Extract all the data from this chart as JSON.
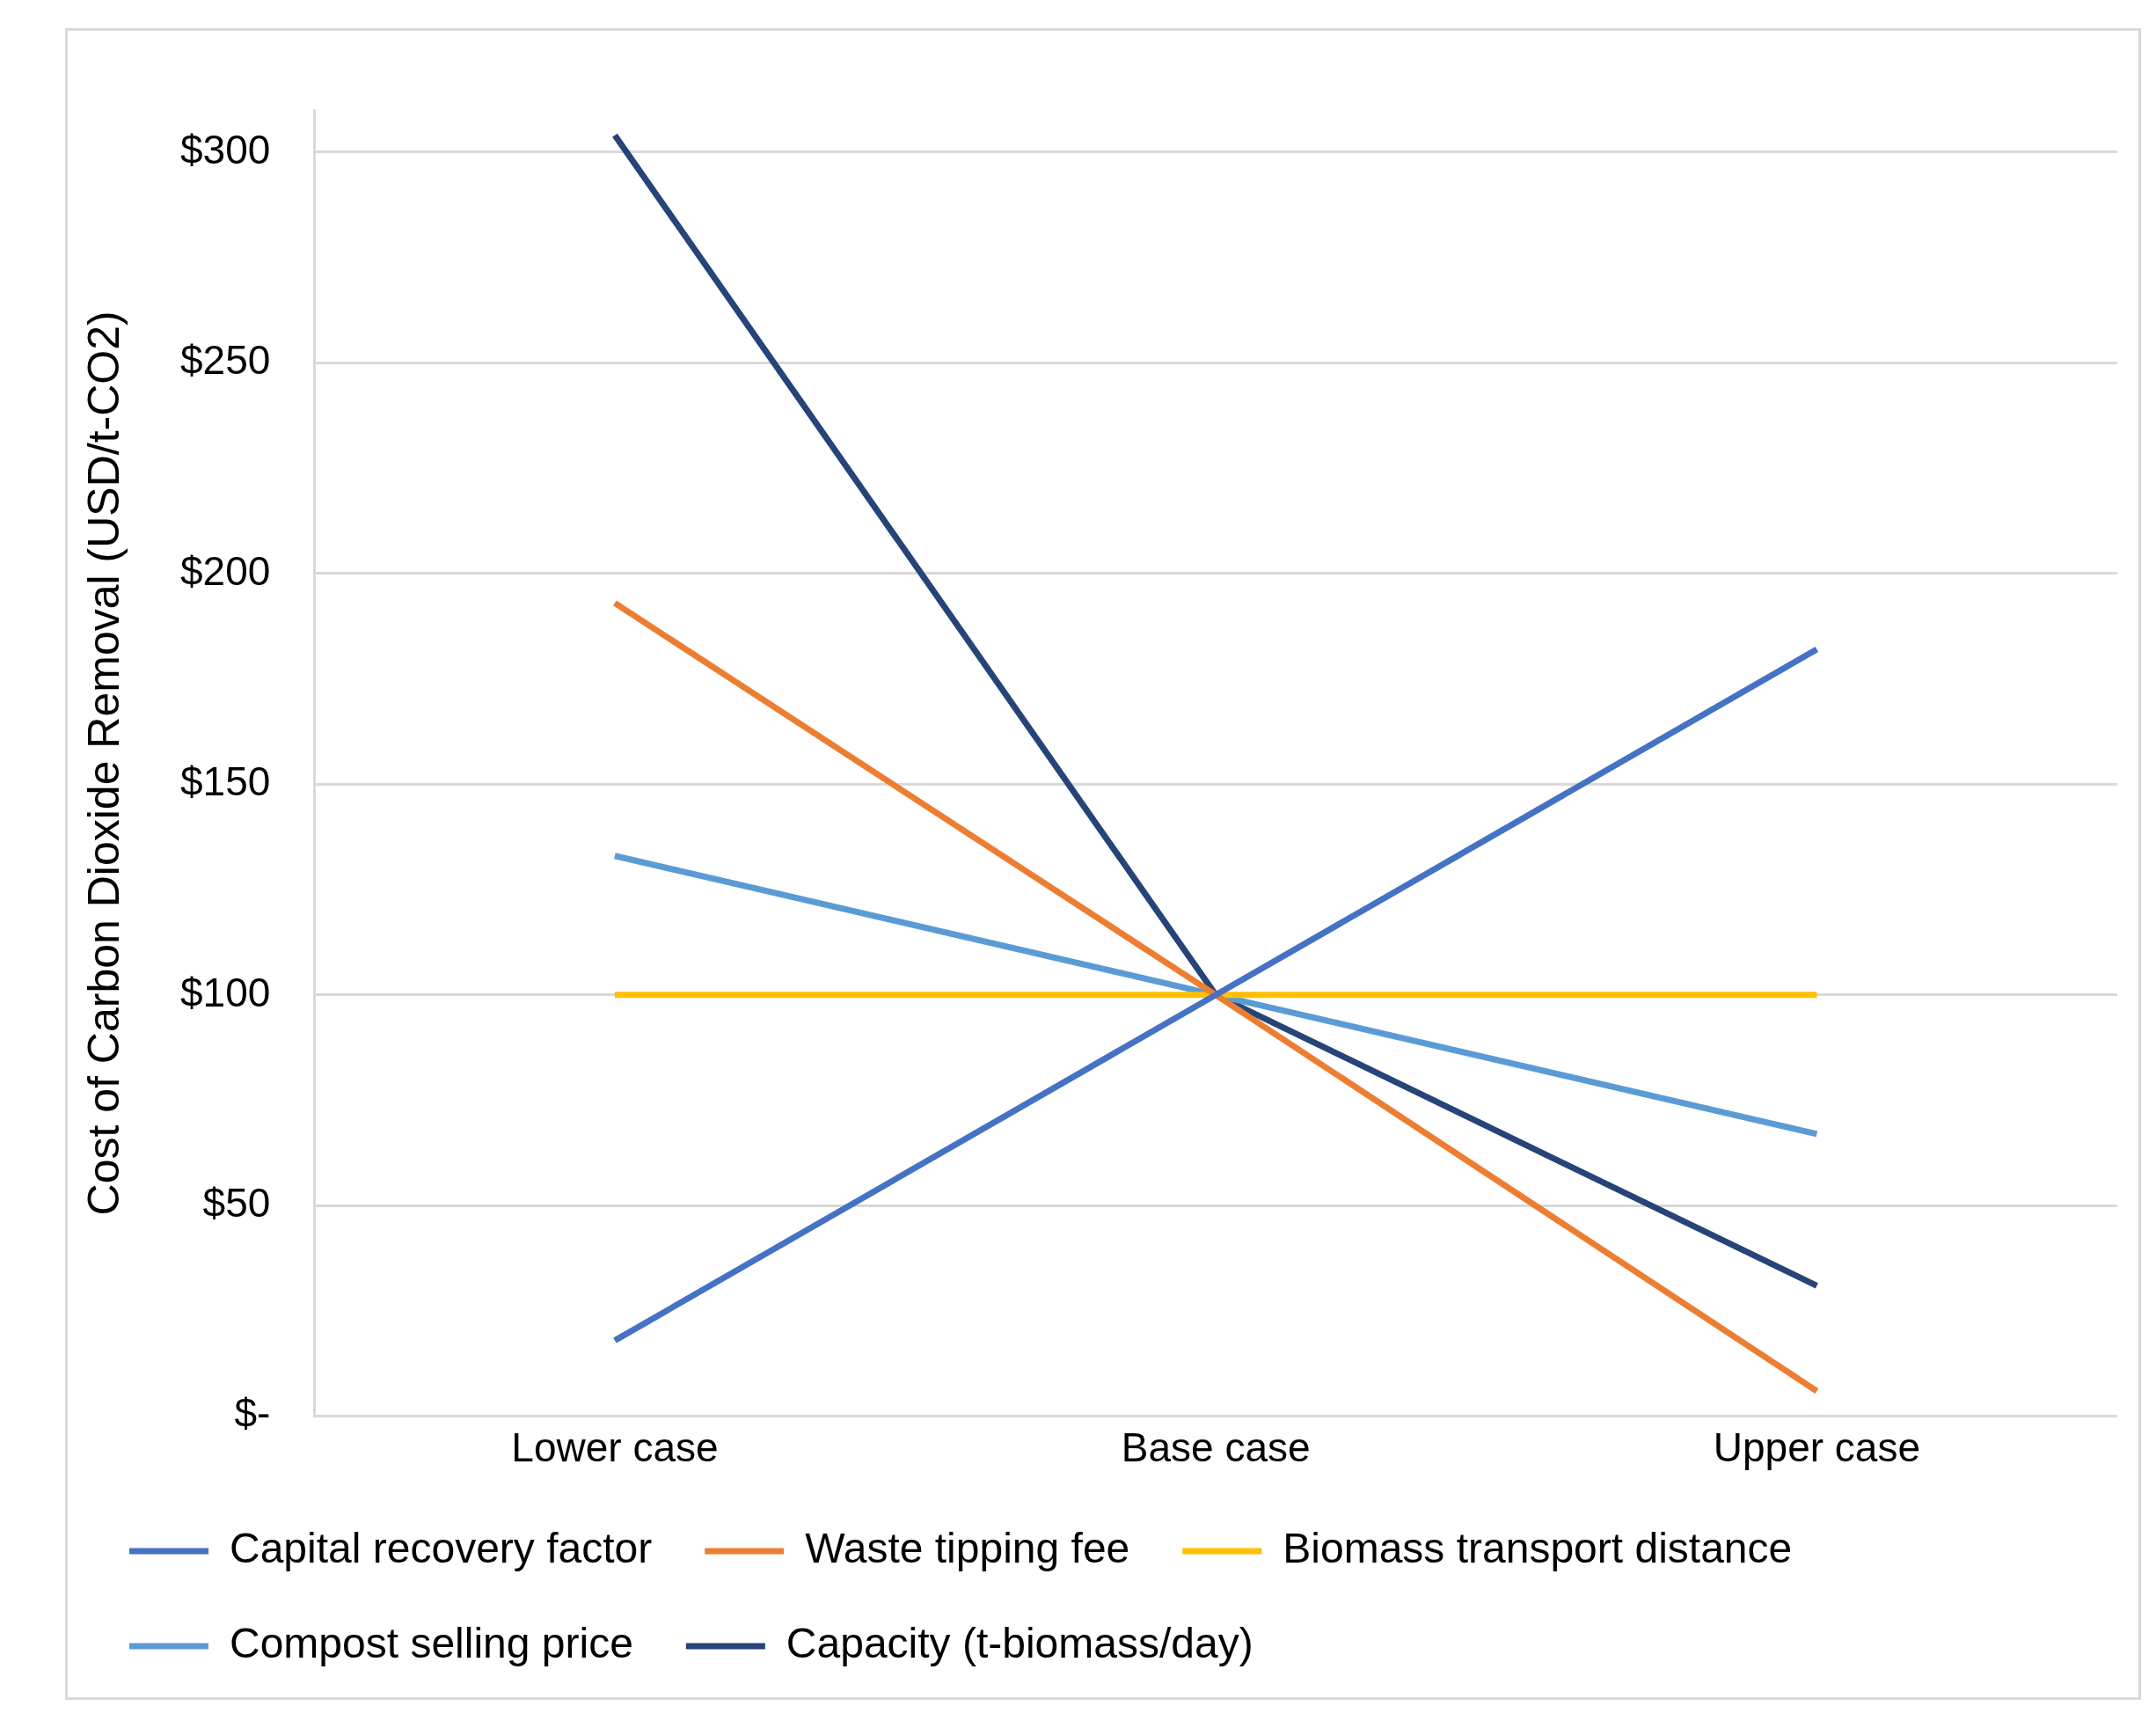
{
  "chart_data": {
    "type": "line",
    "ylabel": "Cost of Carbon Dioxide Removal (USD/t-CO2)",
    "categories": [
      "Lower case",
      "Base case",
      "Upper case"
    ],
    "series": [
      {
        "name": "Capital recovery factor",
        "color": "#4472c4",
        "values": [
          18,
          100,
          182
        ]
      },
      {
        "name": "Waste tipping fee",
        "color": "#ed7d31",
        "values": [
          193,
          100,
          6
        ]
      },
      {
        "name": "Biomass transport distance",
        "color": "#ffc000",
        "values": [
          100,
          100,
          100
        ]
      },
      {
        "name": "Compost selling price",
        "color": "#5b9bd5",
        "values": [
          133,
          100,
          67
        ]
      },
      {
        "name": "Capacity (t-biomass/day)",
        "color": "#264478",
        "values": [
          304,
          100,
          31
        ]
      }
    ],
    "ylim": [
      0,
      310
    ],
    "yticks": [
      {
        "value": 0,
        "label": "$-"
      },
      {
        "value": 50,
        "label": "$50"
      },
      {
        "value": 100,
        "label": "$100"
      },
      {
        "value": 150,
        "label": "$150"
      },
      {
        "value": 200,
        "label": "$200"
      },
      {
        "value": 250,
        "label": "$250"
      },
      {
        "value": 300,
        "label": "$300"
      }
    ],
    "grid": "y",
    "legend": "bottom",
    "marker": "none",
    "line_style": "solid"
  }
}
